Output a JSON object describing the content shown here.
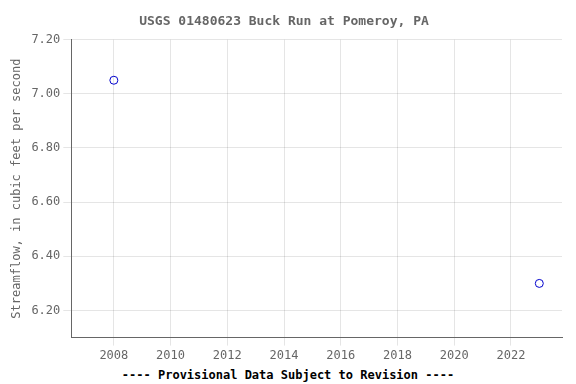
{
  "chart_data": {
    "type": "scatter",
    "title": "USGS 01480623 Buck Run at Pomeroy, PA",
    "y_label": "Streamflow, in cubic feet per second",
    "annotation": "---- Provisional Data Subject to Revision ----",
    "x": [
      2008,
      2023
    ],
    "values": [
      7.05,
      6.3
    ],
    "color": "#0000cc",
    "marker": "circle",
    "xlim": [
      2006.5,
      2023.8
    ],
    "xticks": [
      2008,
      2010,
      2012,
      2014,
      2016,
      2018,
      2020,
      2022
    ],
    "ylim": [
      6.1,
      7.2
    ],
    "yticks": [
      {
        "value": 6.2,
        "label": "6.20"
      },
      {
        "value": 6.4,
        "label": "6.40"
      },
      {
        "value": 6.6,
        "label": "6.60"
      },
      {
        "value": 6.8,
        "label": "6.80"
      },
      {
        "value": 7.0,
        "label": "7.00"
      },
      {
        "value": 7.2,
        "label": "7.20"
      }
    ],
    "grid": true
  }
}
